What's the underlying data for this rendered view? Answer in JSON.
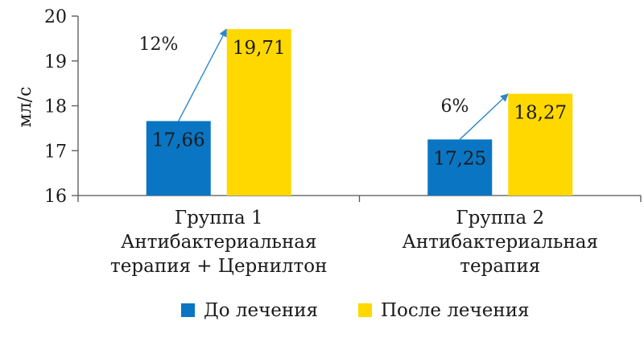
{
  "chart_data": {
    "type": "bar",
    "ylabel": "мл/с",
    "ylim": [
      16,
      20
    ],
    "yticks": [
      16,
      17,
      18,
      19,
      20
    ],
    "categories": [
      [
        "Группа 1",
        "Антибактериальная",
        "терапия + Цернилтон"
      ],
      [
        "Группа 2",
        "Антибактериальная",
        "терапия"
      ]
    ],
    "series": [
      {
        "name": "До лечения",
        "color": "#0a75c2",
        "values": [
          17.66,
          17.25
        ],
        "labels": [
          "17,66",
          "17,25"
        ]
      },
      {
        "name": "После лечения",
        "color": "#ffd800",
        "values": [
          19.71,
          18.27
        ],
        "labels": [
          "19,71",
          "18,27"
        ]
      }
    ],
    "annotations": [
      {
        "group": 0,
        "text": "12%"
      },
      {
        "group": 1,
        "text": "6%"
      }
    ],
    "arrow_color": "#2e86c8",
    "legend_position": "bottom",
    "grid": false
  }
}
